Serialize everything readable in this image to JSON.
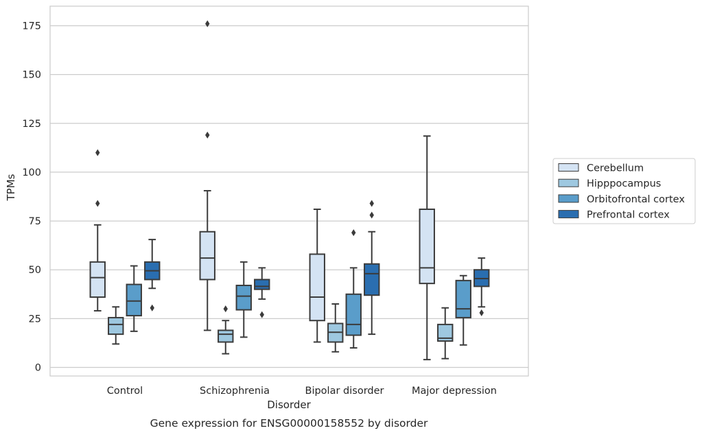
{
  "chart_data": {
    "type": "box",
    "title": "Gene expression for ENSG00000158552 by disorder",
    "xlabel": "Disorder",
    "ylabel": "TPMs",
    "ylim": [
      -4,
      185
    ],
    "yticks": [
      0,
      25,
      50,
      75,
      100,
      125,
      150,
      175
    ],
    "grid": "horizontal",
    "legend_position": "right",
    "categories": [
      "Control",
      "Schizophrenia",
      "Bipolar disorder",
      "Major depression"
    ],
    "series": [
      {
        "name": "Cerebellum",
        "color": "#d4e3f3",
        "boxes": [
          {
            "whislo": 29,
            "q1": 36,
            "med": 46,
            "q3": 54,
            "whishi": 73,
            "fliers": [
              84,
              110
            ]
          },
          {
            "whislo": 19,
            "q1": 45,
            "med": 56,
            "q3": 69.5,
            "whishi": 90.5,
            "fliers": [
              119,
              176
            ]
          },
          {
            "whislo": 13,
            "q1": 24,
            "med": 36,
            "q3": 58,
            "whishi": 81,
            "fliers": []
          },
          {
            "whislo": 4,
            "q1": 43,
            "med": 51,
            "q3": 81,
            "whishi": 118.5,
            "fliers": []
          }
        ]
      },
      {
        "name": "Hipppocampus",
        "color": "#9ec8e0",
        "boxes": [
          {
            "whislo": 12,
            "q1": 17,
            "med": 22,
            "q3": 25.5,
            "whishi": 31,
            "fliers": []
          },
          {
            "whislo": 7,
            "q1": 13,
            "med": 17,
            "q3": 19,
            "whishi": 24,
            "fliers": [
              30
            ]
          },
          {
            "whislo": 8,
            "q1": 13,
            "med": 18,
            "q3": 22.5,
            "whishi": 32.5,
            "fliers": []
          },
          {
            "whislo": 4.5,
            "q1": 13.5,
            "med": 15,
            "q3": 22,
            "whishi": 30.5,
            "fliers": []
          }
        ]
      },
      {
        "name": "Orbitofrontal cortex",
        "color": "#5a9dca",
        "boxes": [
          {
            "whislo": 18.5,
            "q1": 26.5,
            "med": 34,
            "q3": 42.5,
            "whishi": 52,
            "fliers": []
          },
          {
            "whislo": 15.5,
            "q1": 29.5,
            "med": 36.5,
            "q3": 42,
            "whishi": 54,
            "fliers": []
          },
          {
            "whislo": 10,
            "q1": 16.5,
            "med": 22,
            "q3": 37.5,
            "whishi": 51,
            "fliers": [
              69
            ]
          },
          {
            "whislo": 11.5,
            "q1": 25.5,
            "med": 30,
            "q3": 44.5,
            "whishi": 47,
            "fliers": []
          }
        ]
      },
      {
        "name": "Prefrontal cortex",
        "color": "#2a6eb0",
        "boxes": [
          {
            "whislo": 40.5,
            "q1": 45,
            "med": 49.5,
            "q3": 54,
            "whishi": 65.5,
            "fliers": [
              30.5
            ]
          },
          {
            "whislo": 35,
            "q1": 40,
            "med": 41.5,
            "q3": 45,
            "whishi": 51,
            "fliers": [
              27
            ]
          },
          {
            "whislo": 17,
            "q1": 37,
            "med": 48,
            "q3": 53,
            "whishi": 69.5,
            "fliers": [
              78,
              84
            ]
          },
          {
            "whislo": 31,
            "q1": 41.5,
            "med": 45.5,
            "q3": 50,
            "whishi": 56,
            "fliers": [
              28
            ]
          }
        ]
      }
    ]
  }
}
